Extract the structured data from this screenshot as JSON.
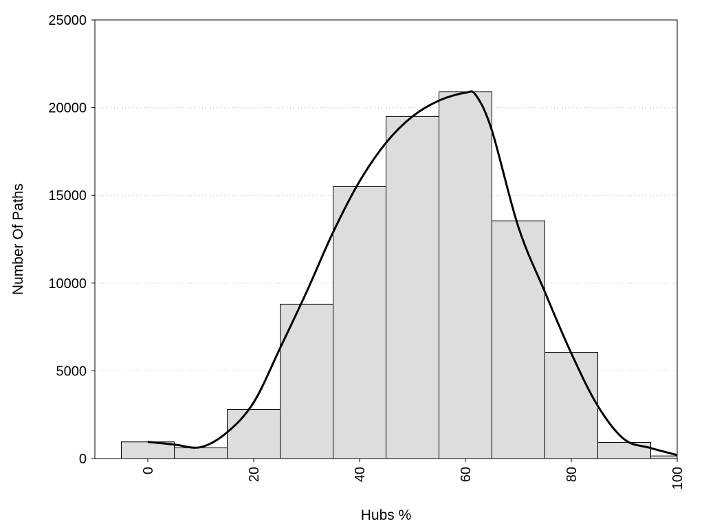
{
  "chart_data": {
    "type": "bar",
    "x": [
      0,
      10,
      20,
      30,
      40,
      50,
      60,
      70,
      80,
      90,
      100
    ],
    "bin_width": 10,
    "values": [
      950,
      620,
      2800,
      8800,
      15500,
      19500,
      20900,
      13550,
      6050,
      920,
      150
    ],
    "curve": {
      "x": [
        0,
        5,
        10,
        15,
        20,
        25,
        30,
        35,
        40,
        45,
        50,
        55,
        60,
        62,
        65,
        70,
        75,
        80,
        85,
        90,
        95,
        100
      ],
      "y": [
        950,
        800,
        650,
        1500,
        3200,
        6300,
        9500,
        12900,
        15800,
        18000,
        19500,
        20400,
        20850,
        20700,
        18700,
        13200,
        9500,
        6000,
        3000,
        1100,
        600,
        200
      ]
    },
    "xlabel": "Hubs %",
    "ylabel": "Number Of Paths",
    "xlim": [
      -10,
      100
    ],
    "ylim": [
      0,
      25000
    ],
    "xticks": [
      0,
      20,
      40,
      60,
      80,
      100
    ],
    "yticks": [
      0,
      5000,
      10000,
      15000,
      20000,
      25000
    ],
    "grid": "horizontal dotted",
    "bar_color": "#dddddd",
    "bar_edge_color": "#000000",
    "curve_color": "#000000"
  }
}
